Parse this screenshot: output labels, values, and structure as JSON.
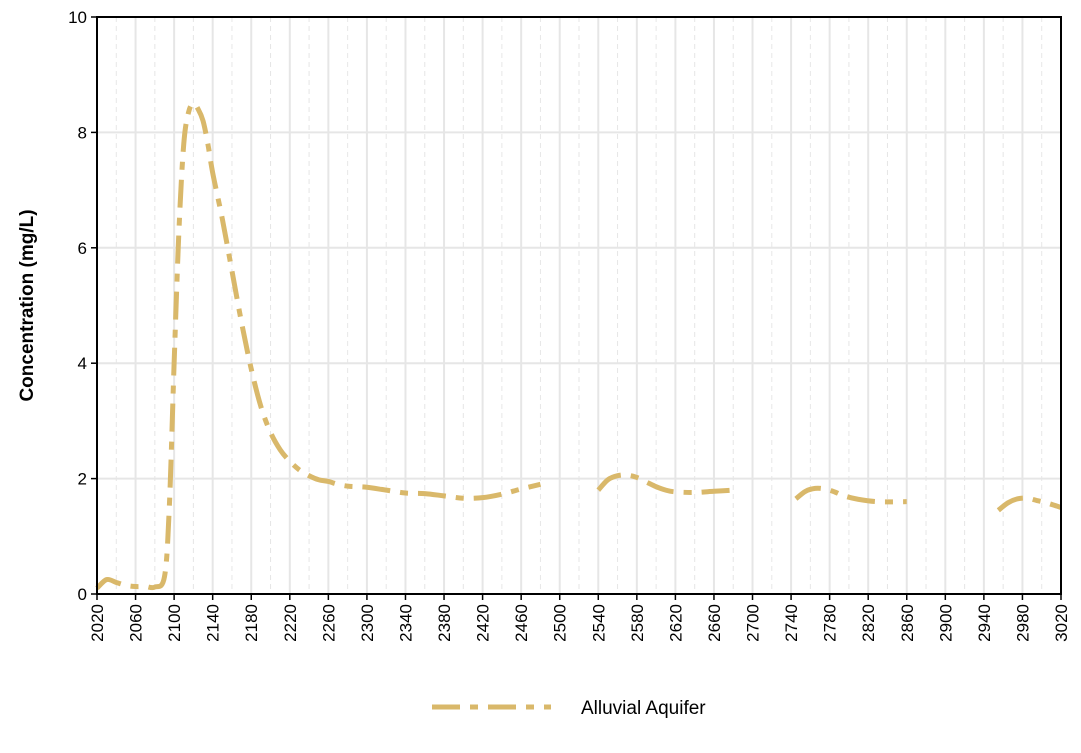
{
  "chart_data": {
    "type": "line",
    "title": "",
    "xlabel": "",
    "ylabel": "Concentration (mg/L)",
    "xlim": [
      2020,
      3020
    ],
    "ylim": [
      0,
      10
    ],
    "x_ticks": [
      2020,
      2060,
      2100,
      2140,
      2180,
      2220,
      2260,
      2300,
      2340,
      2380,
      2420,
      2460,
      2500,
      2540,
      2580,
      2620,
      2660,
      2700,
      2740,
      2780,
      2820,
      2860,
      2900,
      2940,
      2980,
      3020
    ],
    "y_ticks": [
      0,
      2,
      4,
      6,
      8,
      10
    ],
    "grid": true,
    "legend_position": "bottom-center",
    "series": [
      {
        "name": "Alluvial Aquifer",
        "color": "#d9b86a",
        "line_style": "dash-dot",
        "segments": [
          {
            "x": [
              2020,
              2030,
              2040,
              2050,
              2060,
              2070,
              2080,
              2090,
              2095,
              2100,
              2105,
              2110,
              2115,
              2120,
              2125,
              2130,
              2135,
              2140,
              2150,
              2160,
              2170,
              2180,
              2190,
              2200,
              2210,
              2220,
              2230,
              2240,
              2250,
              2260,
              2270,
              2280,
              2290,
              2300,
              2320,
              2340,
              2360,
              2380,
              2400,
              2420,
              2440,
              2460,
              2480
            ],
            "y": [
              0.1,
              0.25,
              0.2,
              0.15,
              0.13,
              0.13,
              0.12,
              0.3,
              1.5,
              4.0,
              6.3,
              7.8,
              8.35,
              8.5,
              8.4,
              8.2,
              7.8,
              7.3,
              6.5,
              5.6,
              4.7,
              3.9,
              3.25,
              2.8,
              2.5,
              2.3,
              2.15,
              2.05,
              1.98,
              1.95,
              1.9,
              1.87,
              1.86,
              1.85,
              1.8,
              1.75,
              1.74,
              1.7,
              1.66,
              1.67,
              1.73,
              1.82,
              1.9
            ]
          },
          {
            "x": [
              2540,
              2550,
              2560,
              2570,
              2580,
              2590,
              2600,
              2610,
              2620,
              2640,
              2660,
              2680
            ],
            "y": [
              1.8,
              1.98,
              2.05,
              2.06,
              2.02,
              1.94,
              1.86,
              1.8,
              1.77,
              1.76,
              1.78,
              1.8
            ]
          },
          {
            "x": [
              2745,
              2755,
              2765,
              2775,
              2785,
              2795,
              2810,
              2830,
              2860
            ],
            "y": [
              1.65,
              1.78,
              1.83,
              1.82,
              1.77,
              1.7,
              1.64,
              1.6,
              1.6
            ]
          },
          {
            "x": [
              2955,
              2965,
              2975,
              2985,
              2995,
              3005,
              3020
            ],
            "y": [
              1.45,
              1.58,
              1.65,
              1.66,
              1.62,
              1.58,
              1.5
            ]
          }
        ]
      }
    ]
  }
}
